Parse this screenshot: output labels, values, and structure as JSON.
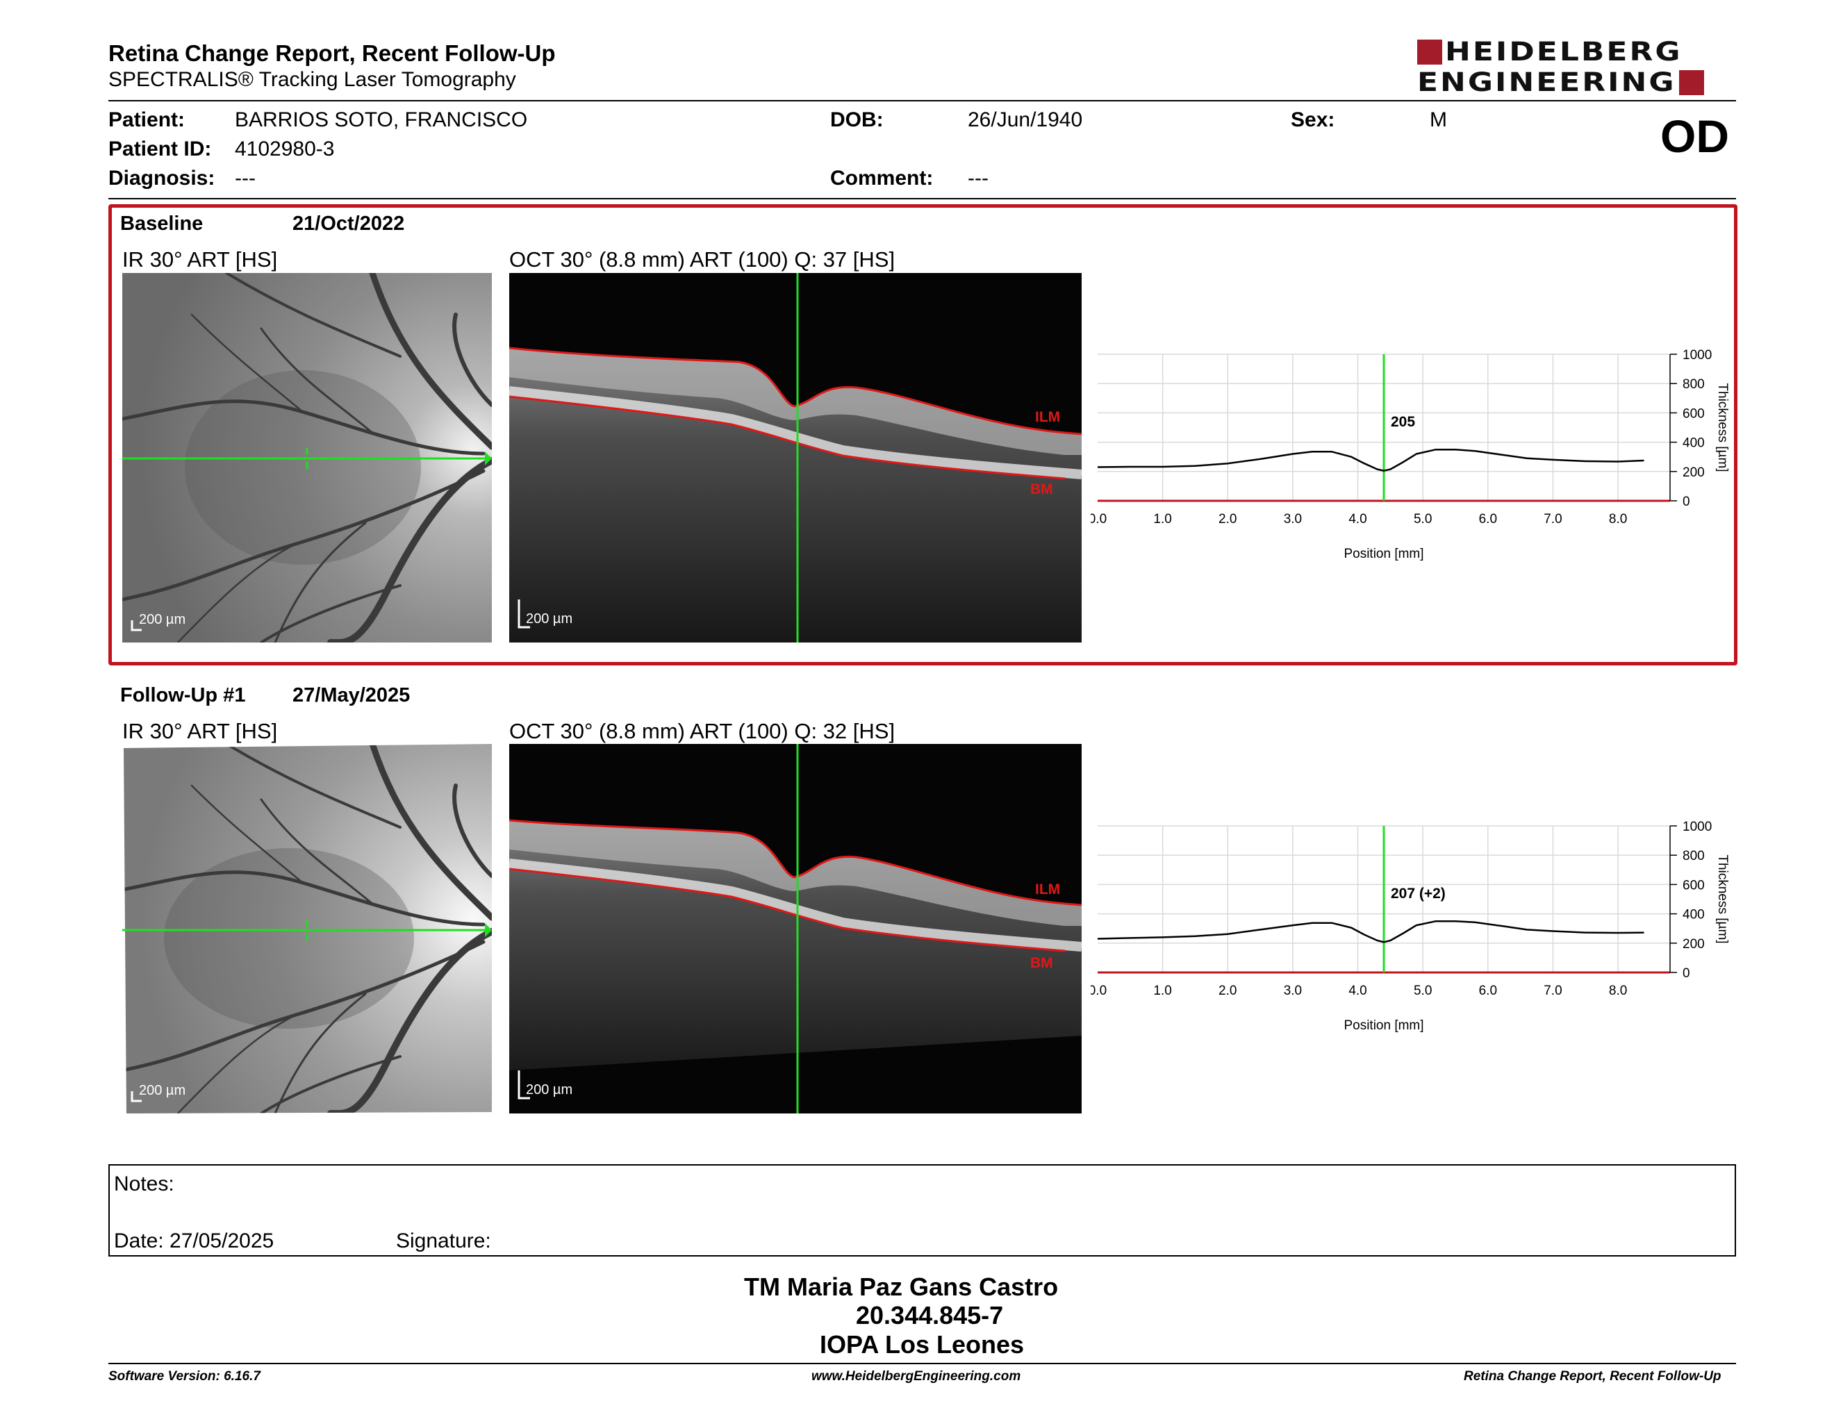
{
  "header": {
    "title": "Retina Change Report, Recent Follow-Up",
    "subtitle": "SPECTRALIS® Tracking Laser Tomography",
    "logo_line1": "HEIDELBERG",
    "logo_line2": "ENGINEERING",
    "eye": "OD"
  },
  "patient": {
    "name_label": "Patient:",
    "name": "BARRIOS SOTO, FRANCISCO",
    "id_label": "Patient ID:",
    "id": "4102980-3",
    "diagnosis_label": "Diagnosis:",
    "diagnosis": "---",
    "dob_label": "DOB:",
    "dob": "26/Jun/1940",
    "comment_label": "Comment:",
    "comment": "---",
    "sex_label": "Sex:",
    "sex": "M"
  },
  "baseline": {
    "label": "Baseline",
    "date": "21/Oct/2022",
    "ir_caption": "IR 30° ART [HS]",
    "oct_caption": "OCT 30° (8.8 mm) ART (100) Q: 37 [HS]",
    "ir_scale": "200 µm",
    "oct_scale": "200 µm",
    "ilm_label": "ILM",
    "bm_label": "BM"
  },
  "followup": {
    "label": "Follow-Up #1",
    "date": "27/May/2025",
    "ir_caption": "IR 30° ART [HS]",
    "oct_caption": "OCT 30° (8.8 mm) ART (100) Q: 32 [HS]",
    "ir_scale": "200 µm",
    "oct_scale": "200 µm",
    "ilm_label": "ILM",
    "bm_label": "BM"
  },
  "chart_data": [
    {
      "type": "line",
      "xlabel": "Position [mm]",
      "ylabel": "Thickness [µm]",
      "xlim": [
        0,
        8.8
      ],
      "ylim": [
        0,
        1000
      ],
      "x_ticks": [
        "0.0",
        "1.0",
        "2.0",
        "3.0",
        "4.0",
        "5.0",
        "6.0",
        "7.0",
        "8.0"
      ],
      "y_ticks": [
        "0",
        "200",
        "400",
        "600",
        "800",
        "1000"
      ],
      "grid": true,
      "marker_x": 4.4,
      "marker_label": "205",
      "series": [
        {
          "x": [
            0,
            0.5,
            1.0,
            1.5,
            2.0,
            2.5,
            3.0,
            3.3,
            3.6,
            3.9,
            4.1,
            4.3,
            4.4,
            4.5,
            4.7,
            4.9,
            5.2,
            5.5,
            5.8,
            6.2,
            6.6,
            7.0,
            7.5,
            8.0,
            8.4
          ],
          "y": [
            230,
            232,
            232,
            238,
            255,
            285,
            320,
            335,
            335,
            300,
            255,
            215,
            205,
            215,
            265,
            320,
            350,
            350,
            340,
            315,
            290,
            280,
            270,
            268,
            275
          ]
        }
      ]
    },
    {
      "type": "line",
      "xlabel": "Position [mm]",
      "ylabel": "Thickness [µm]",
      "xlim": [
        0,
        8.8
      ],
      "ylim": [
        0,
        1000
      ],
      "x_ticks": [
        "0.0",
        "1.0",
        "2.0",
        "3.0",
        "4.0",
        "5.0",
        "6.0",
        "7.0",
        "8.0"
      ],
      "y_ticks": [
        "0",
        "200",
        "400",
        "600",
        "800",
        "1000"
      ],
      "grid": true,
      "marker_x": 4.4,
      "marker_label": "207 (+2)",
      "series": [
        {
          "x": [
            0,
            0.5,
            1.0,
            1.5,
            2.0,
            2.5,
            3.0,
            3.3,
            3.6,
            3.9,
            4.1,
            4.3,
            4.4,
            4.5,
            4.7,
            4.9,
            5.2,
            5.5,
            5.8,
            6.2,
            6.6,
            7.0,
            7.5,
            8.0,
            8.4
          ],
          "y": [
            230,
            235,
            240,
            248,
            262,
            292,
            322,
            338,
            338,
            305,
            258,
            218,
            207,
            218,
            268,
            322,
            350,
            350,
            342,
            318,
            292,
            282,
            272,
            270,
            272
          ]
        }
      ]
    }
  ],
  "notes": {
    "notes_label": "Notes:",
    "date_label": "Date: 27/05/2025",
    "signature_label": "Signature:"
  },
  "signer": {
    "name": "TM Maria Paz Gans Castro",
    "rut": "20.344.845-7",
    "clinic": "IOPA Los Leones"
  },
  "footer": {
    "left": "Software Version: 6.16.7",
    "center": "www.HeidelbergEngineering.com",
    "right": "Retina Change Report, Recent Follow-Up"
  }
}
